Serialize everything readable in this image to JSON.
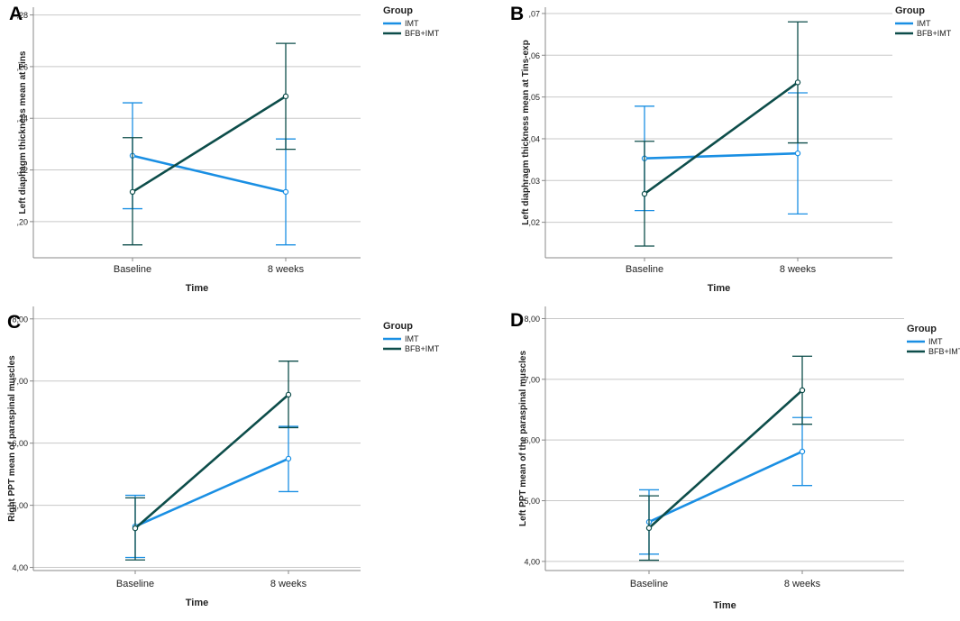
{
  "colors": {
    "imt": "#1a8fe3",
    "bfb": "#0d4d4a",
    "grid": "#c8c8c8",
    "axis": "#888888",
    "text": "#222222"
  },
  "chart_data": [
    {
      "type": "line",
      "panel_label": "A",
      "title": "",
      "xlabel": "Time",
      "ylabel": "Left diaphagm thickness mean at Tins",
      "categories": [
        "Baseline",
        "8 weeks"
      ],
      "ylim": [
        0.186,
        0.283
      ],
      "yticks": [
        0.2,
        0.22,
        0.24,
        0.26,
        0.28
      ],
      "ytick_labels": [
        ",20",
        ",22",
        ",24",
        ",26",
        ",28"
      ],
      "grid": true,
      "legend": {
        "title": "Group",
        "placement": "top-right",
        "entries": [
          "IMT",
          "BFB+IMT"
        ]
      },
      "series": [
        {
          "name": "IMT",
          "values": [
            0.2255,
            0.2115
          ],
          "err_low": [
            0.205,
            0.191
          ],
          "err_high": [
            0.246,
            0.232
          ]
        },
        {
          "name": "BFB+IMT",
          "values": [
            0.2115,
            0.2485
          ],
          "err_low": [
            0.191,
            0.228
          ],
          "err_high": [
            0.2325,
            0.269
          ]
        }
      ]
    },
    {
      "type": "line",
      "panel_label": "B",
      "title": "",
      "xlabel": "Time",
      "ylabel": "Left diaphragm thickness mean at Tins-exp",
      "categories": [
        "Baseline",
        "8 weeks"
      ],
      "ylim": [
        0.0115,
        0.0715
      ],
      "yticks": [
        0.02,
        0.03,
        0.04,
        0.05,
        0.06,
        0.07
      ],
      "ytick_labels": [
        ",02",
        ",03",
        ",04",
        ",05",
        ",06",
        ",07"
      ],
      "grid": true,
      "legend": {
        "title": "Group",
        "placement": "top-right",
        "entries": [
          "IMT",
          "BFB+IMT"
        ]
      },
      "series": [
        {
          "name": "IMT",
          "values": [
            0.0353,
            0.0365
          ],
          "err_low": [
            0.0228,
            0.022
          ],
          "err_high": [
            0.0478,
            0.051
          ]
        },
        {
          "name": "BFB+IMT",
          "values": [
            0.0268,
            0.0535
          ],
          "err_low": [
            0.0143,
            0.039
          ],
          "err_high": [
            0.0394,
            0.068
          ]
        }
      ]
    },
    {
      "type": "line",
      "panel_label": "C",
      "title": "",
      "xlabel": "Time",
      "ylabel": "Right PPT mean of paraspinal muscles",
      "categories": [
        "Baseline",
        "8 weeks"
      ],
      "ylim": [
        3.95,
        8.2
      ],
      "yticks": [
        4.0,
        5.0,
        6.0,
        7.0,
        8.0
      ],
      "ytick_labels": [
        "4,00",
        "5,00",
        "6,00",
        "7,00",
        "8,00"
      ],
      "grid": true,
      "legend": {
        "title": "Group",
        "placement": "top-right",
        "entries": [
          "IMT",
          "BFB+IMT"
        ]
      },
      "series": [
        {
          "name": "IMT",
          "values": [
            4.66,
            5.75
          ],
          "err_low": [
            4.16,
            5.22
          ],
          "err_high": [
            5.16,
            6.27
          ]
        },
        {
          "name": "BFB+IMT",
          "values": [
            4.63,
            6.78
          ],
          "err_low": [
            4.12,
            6.25
          ],
          "err_high": [
            5.12,
            7.32
          ]
        }
      ]
    },
    {
      "type": "line",
      "panel_label": "D",
      "title": "",
      "xlabel": "Time",
      "ylabel": "Left PPT mean of the paraspinal muscles",
      "categories": [
        "Baseline",
        "8 weeks"
      ],
      "ylim": [
        3.85,
        8.2
      ],
      "yticks": [
        4.0,
        5.0,
        6.0,
        7.0,
        8.0
      ],
      "ytick_labels": [
        "4,00",
        "5,00",
        "6,00",
        "7,00",
        "8,00"
      ],
      "grid": true,
      "legend": {
        "title": "Group",
        "placement": "top-right",
        "entries": [
          "IMT",
          "BFB+IMT"
        ]
      },
      "series": [
        {
          "name": "IMT",
          "values": [
            4.65,
            5.81
          ],
          "err_low": [
            4.12,
            5.25
          ],
          "err_high": [
            5.18,
            6.37
          ]
        },
        {
          "name": "BFB+IMT",
          "values": [
            4.55,
            6.82
          ],
          "err_low": [
            4.02,
            6.26
          ],
          "err_high": [
            5.08,
            7.38
          ]
        }
      ]
    }
  ]
}
